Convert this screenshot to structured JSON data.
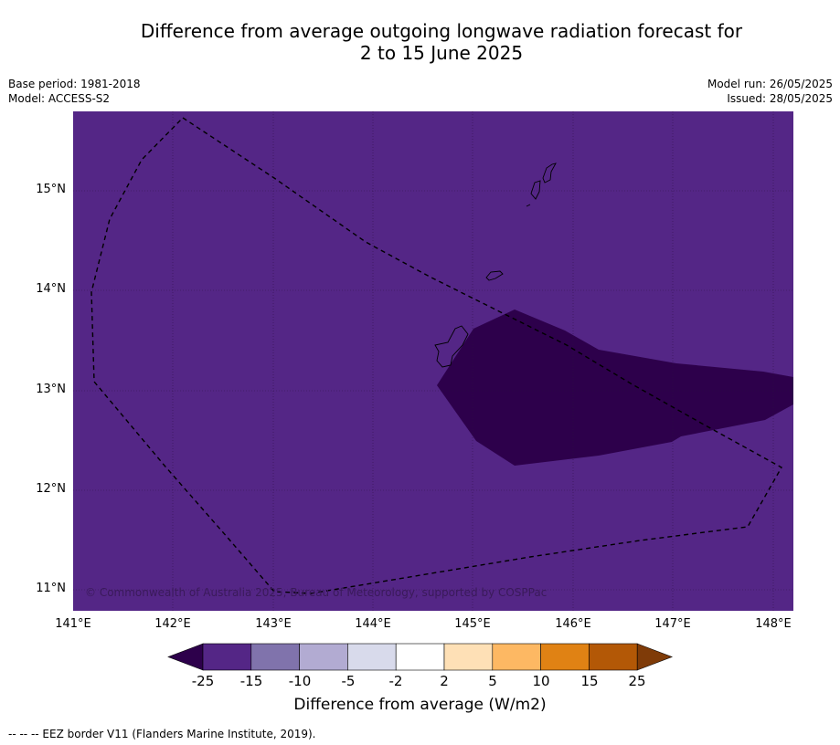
{
  "title": {
    "line1": "Difference from average outgoing longwave radiation forecast for",
    "line2": "2 to 15 June 2025"
  },
  "meta_left": {
    "base_period": "Base period: 1981-2018",
    "model": "Model: ACCESS-S2"
  },
  "meta_right": {
    "model_run": "Model run: 26/05/2025",
    "issued": "Issued: 28/05/2025"
  },
  "map": {
    "lat_ticks": [
      "15°N",
      "14°N",
      "13°N",
      "12°N",
      "11°N"
    ],
    "lon_ticks": [
      "141°E",
      "142°E",
      "143°E",
      "144°E",
      "145°E",
      "146°E",
      "147°E",
      "148°E"
    ],
    "background_color": "#542686",
    "anomaly_color": "#2d004b",
    "copyright": "© Commonwealth of Australia 2025, Bureau of Meteorology, supported by COSPPac"
  },
  "colorbar": {
    "tick_labels": [
      "-25",
      "-15",
      "-10",
      "-5",
      "-2",
      "2",
      "5",
      "10",
      "15",
      "25"
    ],
    "colors": [
      "#2d004b",
      "#542686",
      "#8073ac",
      "#b2abd2",
      "#d8daeb",
      "#ffffff",
      "#fee0b6",
      "#fdb863",
      "#e08214",
      "#b35806",
      "#7f3b08"
    ],
    "title": "Difference from average (W/m2)"
  },
  "footer": "--  --  -- EEZ border V11 (Flanders Marine Institute, 2019)."
}
